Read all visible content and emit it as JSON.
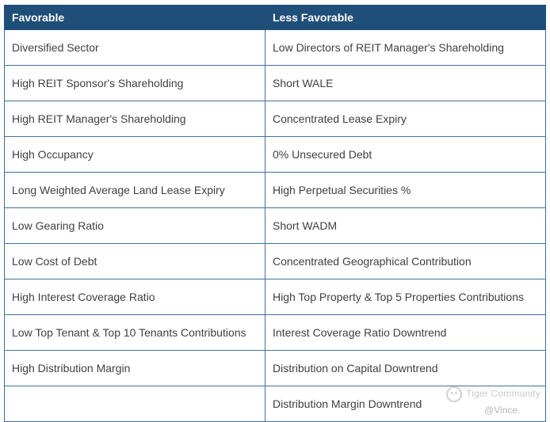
{
  "table": {
    "headers": [
      "Favorable",
      "Less Favorable"
    ],
    "rows": [
      [
        "Diversified Sector",
        "Low Directors of REIT Manager's Shareholding"
      ],
      [
        "High REIT Sponsor's Shareholding",
        "Short WALE"
      ],
      [
        "High REIT Manager's Shareholding",
        "Concentrated Lease Expiry"
      ],
      [
        "High Occupancy",
        "0% Unsecured Debt"
      ],
      [
        "Long Weighted Average Land Lease Expiry",
        "High Perpetual Securities %"
      ],
      [
        "Low Gearing Ratio",
        "Short WADM"
      ],
      [
        "Low Cost of Debt",
        "Concentrated Geographical Contribution"
      ],
      [
        "High Interest Coverage Ratio",
        "High Top Property & Top 5 Properties Contributions"
      ],
      [
        "Low Top Tenant & Top 10 Tenants Contributions",
        "Interest Coverage Ratio Downtrend"
      ],
      [
        "High Distribution Margin",
        "Distribution on Capital Downtrend"
      ],
      [
        "",
        "Distribution Margin Downtrend"
      ]
    ]
  },
  "watermark": {
    "brand": "Tiger Community",
    "author": "@Vince.",
    "logo_icon": "tiger-logo-icon"
  },
  "colors": {
    "header_bg": "#1f4e79",
    "header_text": "#ffffff",
    "border": "#41719c",
    "body_text": "#404040"
  }
}
